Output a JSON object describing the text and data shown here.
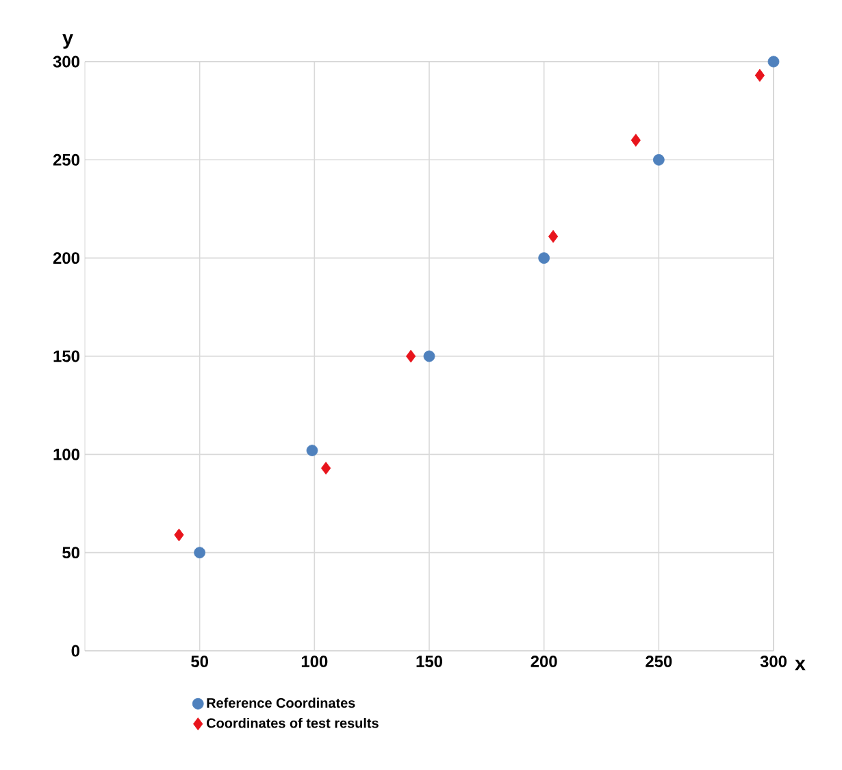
{
  "chart_data": {
    "type": "scatter",
    "xlabel": "x",
    "ylabel": "y",
    "series": [
      {
        "name": "Reference Coordinates",
        "color": "#4f81bd",
        "marker": "circle",
        "x": [
          50,
          99,
          150,
          200,
          250,
          300
        ],
        "values": [
          50,
          102,
          150,
          200,
          250,
          300
        ]
      },
      {
        "name": "Coordinates of test results",
        "color": "#e8141c",
        "marker": "diamond",
        "x": [
          41,
          105,
          142,
          204,
          240,
          294
        ],
        "values": [
          59,
          93,
          150,
          211,
          260,
          293
        ]
      }
    ],
    "xlim": [
      0,
      300
    ],
    "ylim": [
      0,
      300
    ],
    "xticks": [
      50,
      100,
      150,
      200,
      250,
      300
    ],
    "yticks": [
      0,
      50,
      100,
      150,
      200,
      250,
      300
    ],
    "grid": true,
    "legend": "bottom"
  }
}
